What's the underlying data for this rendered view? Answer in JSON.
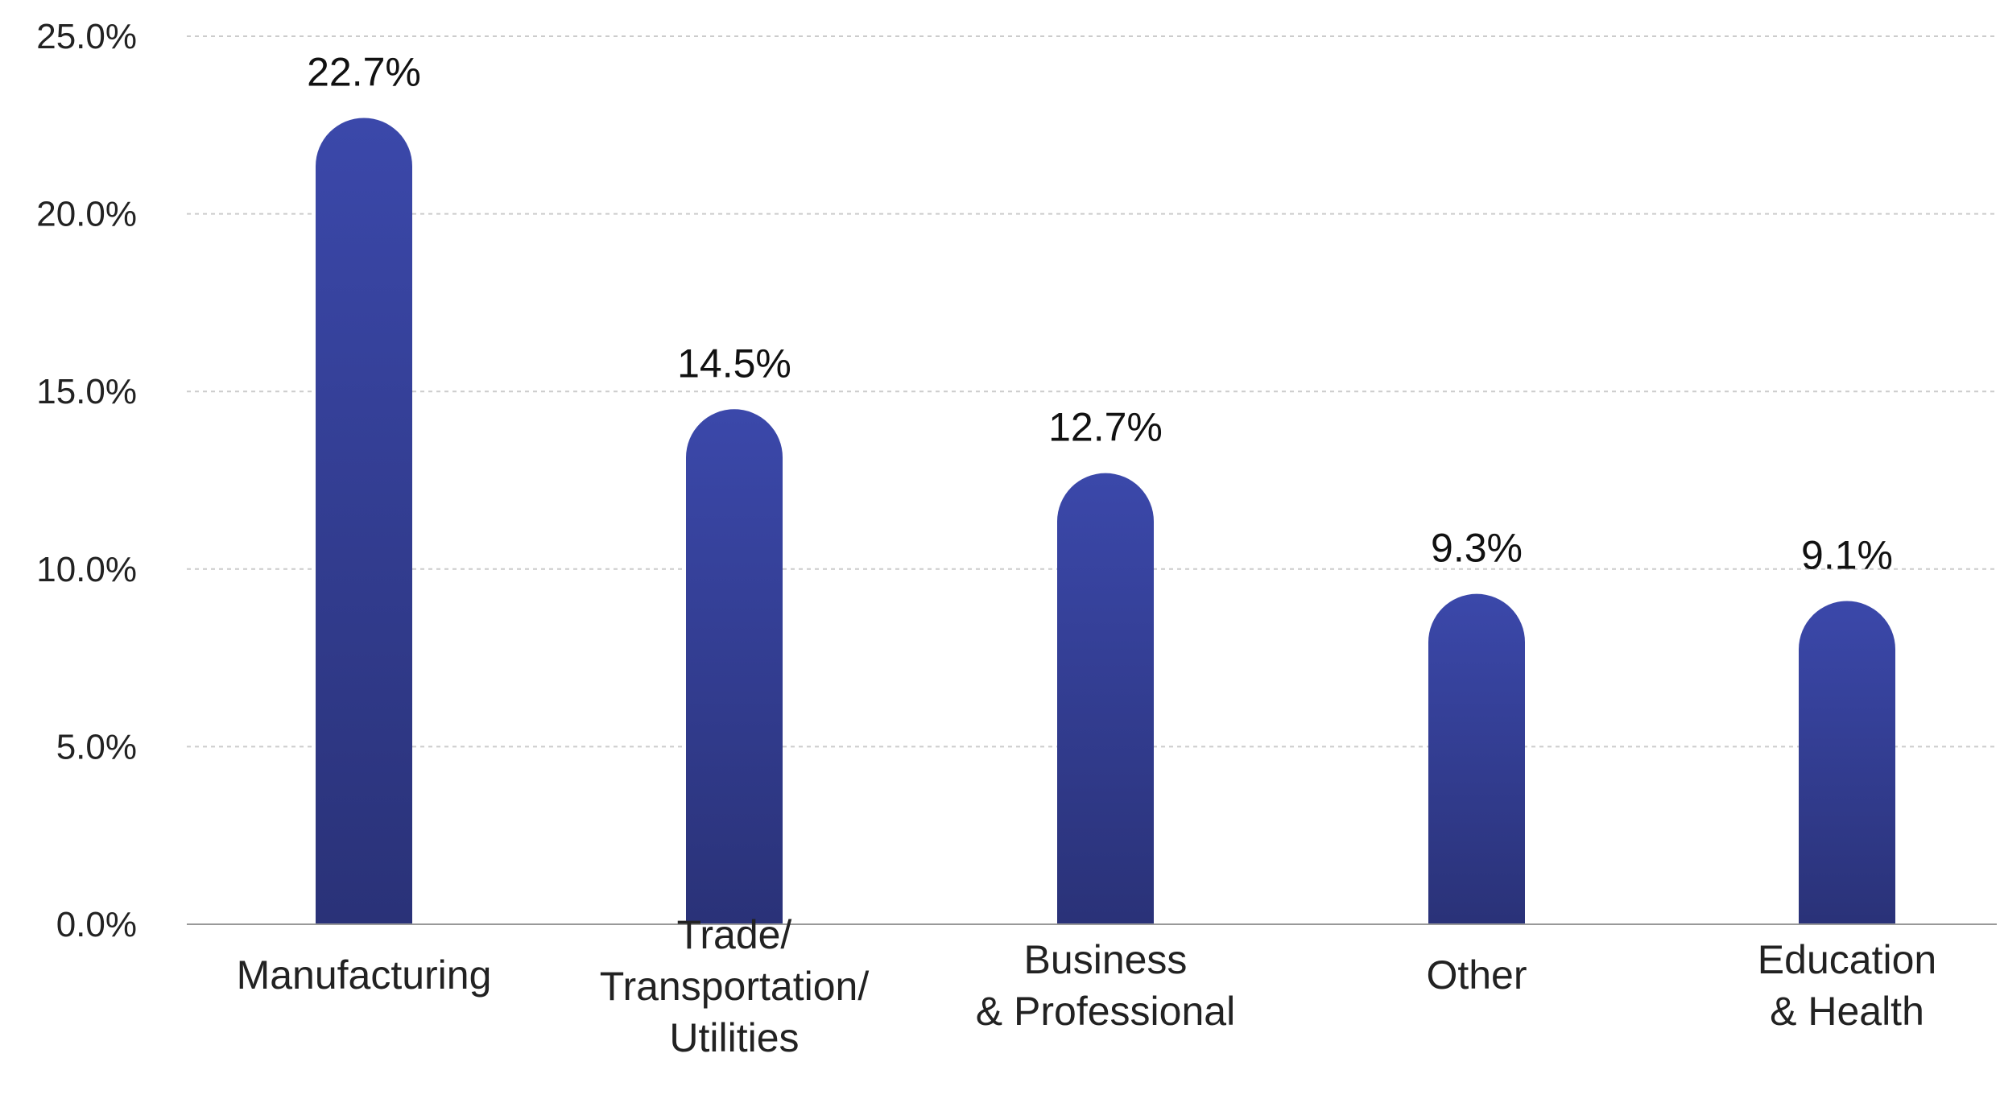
{
  "chart_data": {
    "type": "bar",
    "title": "",
    "xlabel": "",
    "ylabel": "",
    "categories": [
      [
        "Manufacturing"
      ],
      [
        "Trade/",
        "Transportation/",
        "Utilities"
      ],
      [
        "Business",
        "& Professional"
      ],
      [
        "Other"
      ],
      [
        "Education",
        "& Health"
      ]
    ],
    "values": [
      22.7,
      14.5,
      12.7,
      9.3,
      9.1
    ],
    "value_labels": [
      "22.7%",
      "14.5%",
      "12.7%",
      "9.3%",
      "9.1%"
    ],
    "ylim": [
      0,
      25
    ],
    "yticks": [
      0,
      5,
      10,
      15,
      20,
      25
    ],
    "ytick_labels": [
      "0.0%",
      "5.0%",
      "10.0%",
      "15.0%",
      "20.0%",
      "25.0%"
    ],
    "grid": true,
    "legend": "none",
    "colors": {
      "bar_top": "#3B48AA",
      "bar_bottom": "#2A3278",
      "grid": "#CCCCCC",
      "axis": "#999999",
      "text": "#222222"
    }
  }
}
